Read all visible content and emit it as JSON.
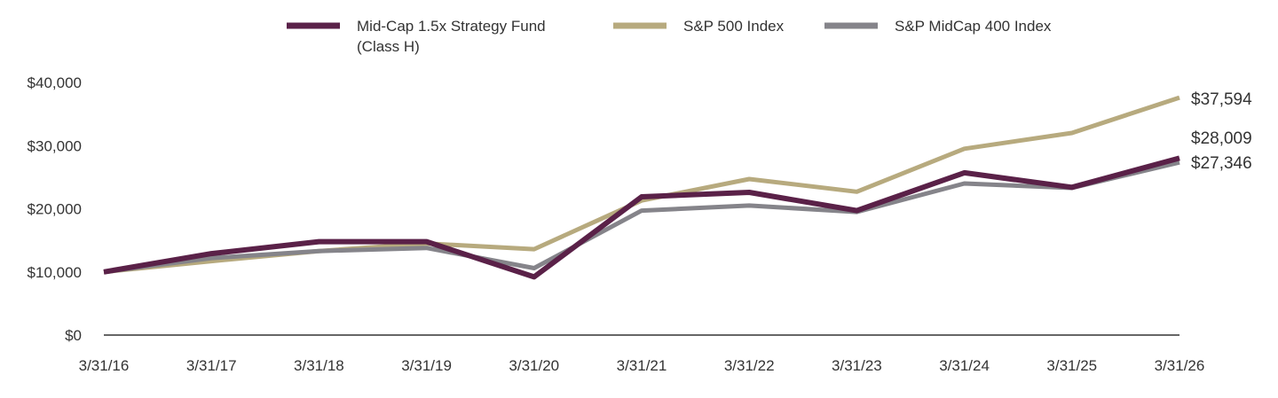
{
  "chart_data": {
    "type": "line",
    "x": [
      "3/31/16",
      "3/31/17",
      "3/31/18",
      "3/31/19",
      "3/31/20",
      "3/31/21",
      "3/31/22",
      "3/31/23",
      "3/31/24",
      "3/31/25",
      "3/31/26"
    ],
    "series": [
      {
        "name": "Mid-Cap 1.5x Strategy Fund (Class H)",
        "legend_lines": [
          "Mid-Cap 1.5x Strategy Fund",
          "(Class H)"
        ],
        "color": "#5a2148",
        "values": [
          10000,
          12900,
          14800,
          14800,
          9200,
          21900,
          22600,
          19700,
          25700,
          23400,
          28009
        ],
        "end_label": "$28,009"
      },
      {
        "name": "S&P 500 Index",
        "legend_lines": [
          "S&P 500 Index"
        ],
        "color": "#b7aa7e",
        "values": [
          10000,
          11700,
          13300,
          14500,
          13600,
          21300,
          24700,
          22700,
          29500,
          32000,
          37594
        ],
        "end_label": "$37,594"
      },
      {
        "name": "S&P MidCap 400 Index",
        "legend_lines": [
          "S&P MidCap 400 Index"
        ],
        "color": "#85848a",
        "values": [
          10000,
          12200,
          13300,
          13800,
          10600,
          19700,
          20500,
          19500,
          24000,
          23300,
          27346
        ],
        "end_label": "$27,346"
      }
    ],
    "y_ticks": [
      {
        "value": 0,
        "label": "$0"
      },
      {
        "value": 10000,
        "label": "$10,000"
      },
      {
        "value": 20000,
        "label": "$20,000"
      },
      {
        "value": 30000,
        "label": "$30,000"
      },
      {
        "value": 40000,
        "label": "$40,000"
      }
    ],
    "ylim": [
      0,
      40000
    ],
    "title": "",
    "xlabel": "",
    "ylabel": "",
    "grid": false,
    "legend_position": "top-center"
  }
}
